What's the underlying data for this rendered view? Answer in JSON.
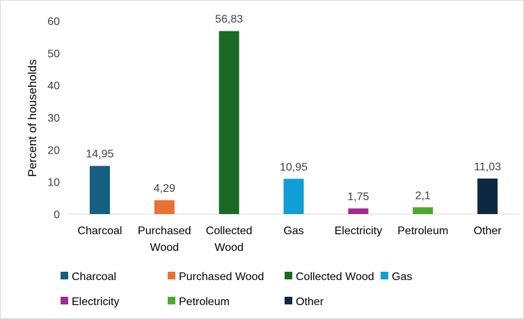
{
  "chart_data": {
    "type": "bar",
    "title": "",
    "xlabel": "",
    "ylabel": "Percent of households",
    "ylim": [
      0,
      60
    ],
    "yticks": [
      0,
      10,
      20,
      30,
      40,
      50,
      60
    ],
    "grid": false,
    "legend_position": "bottom",
    "categories": [
      {
        "name": "Charcoal",
        "label_lines": [
          "Charcoal"
        ],
        "value": 14.95,
        "value_label": "14,95",
        "color": "#156082"
      },
      {
        "name": "Purchased Wood",
        "label_lines": [
          "Purchased",
          "Wood"
        ],
        "value": 4.29,
        "value_label": "4,29",
        "color": "#E97132"
      },
      {
        "name": "Collected Wood",
        "label_lines": [
          "Collected",
          "Wood"
        ],
        "value": 56.83,
        "value_label": "56,83",
        "color": "#196B24"
      },
      {
        "name": "Gas",
        "label_lines": [
          "Gas"
        ],
        "value": 10.95,
        "value_label": "10,95",
        "color": "#0F9ED5"
      },
      {
        "name": "Electricity",
        "label_lines": [
          "Electricity"
        ],
        "value": 1.75,
        "value_label": "1,75",
        "color": "#A02B93"
      },
      {
        "name": "Petroleum",
        "label_lines": [
          "Petroleum"
        ],
        "value": 2.1,
        "value_label": "2,1",
        "color": "#4EA72E"
      },
      {
        "name": "Other",
        "label_lines": [
          "Other"
        ],
        "value": 11.03,
        "value_label": "11,03",
        "color": "#0E2841"
      }
    ]
  }
}
